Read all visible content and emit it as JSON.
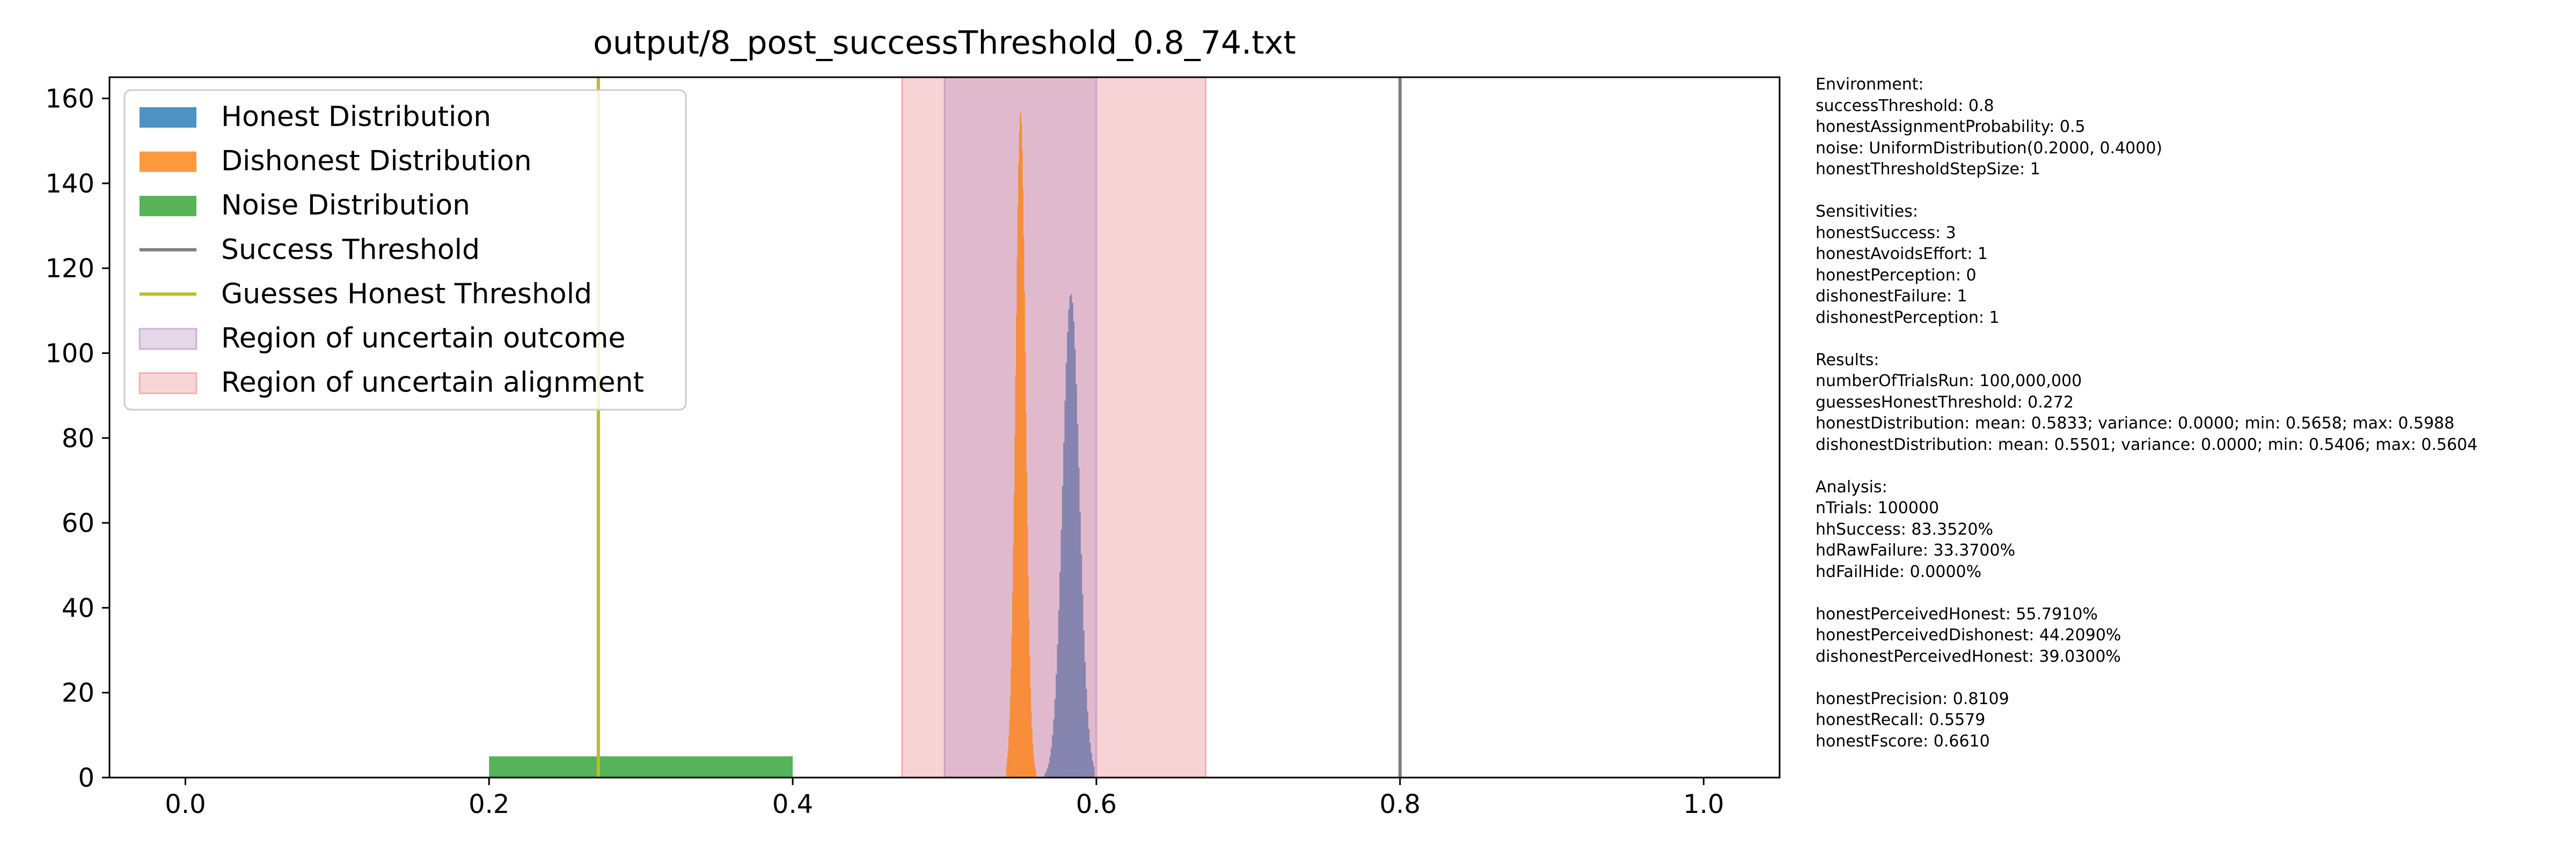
{
  "chart_data": {
    "type": "histogram",
    "title": "output/8_post_successThreshold_0.8_74.txt",
    "xlim": [
      -0.05,
      1.05
    ],
    "ylim": [
      0,
      165
    ],
    "xticks": [
      "0.0",
      "0.2",
      "0.4",
      "0.6",
      "0.8",
      "1.0"
    ],
    "yticks": [
      "0",
      "20",
      "40",
      "60",
      "80",
      "100",
      "120",
      "140",
      "160"
    ],
    "legend_position": "top-left",
    "legend": [
      {
        "label": "Honest Distribution",
        "color": "#1f77b4",
        "kind": "patch"
      },
      {
        "label": "Dishonest Distribution",
        "color": "#ff7f0e",
        "kind": "patch"
      },
      {
        "label": "Noise Distribution",
        "color": "#2ca02c",
        "kind": "patch"
      },
      {
        "label": "Success Threshold",
        "color": "#7f7f7f",
        "kind": "line"
      },
      {
        "label": "Guesses Honest Threshold",
        "color": "#bcbd22",
        "kind": "line"
      },
      {
        "label": "Region of uncertain outcome",
        "color": "#9467bd",
        "kind": "region"
      },
      {
        "label": "Region of uncertain alignment",
        "color": "#e377c2",
        "kind": "region"
      }
    ],
    "success_threshold": 0.8,
    "guesses_honest_threshold": 0.272,
    "region_uncertain_outcome": [
      0.5,
      0.6
    ],
    "region_uncertain_alignment": [
      0.472,
      0.672
    ],
    "noise_distribution": {
      "min": 0.2,
      "max": 0.4,
      "density": 5
    },
    "honest_distribution": {
      "mean": 0.5833,
      "min": 0.5658,
      "max": 0.5988,
      "peak_density": 114
    },
    "dishonest_distribution": {
      "mean": 0.5501,
      "min": 0.5406,
      "max": 0.5604,
      "peak_density": 157
    }
  },
  "side_panel": {
    "lines": [
      "Environment:",
      "successThreshold: 0.8",
      "honestAssignmentProbability: 0.5",
      "noise: UniformDistribution(0.2000, 0.4000)",
      "honestThresholdStepSize: 1",
      "",
      "Sensitivities:",
      "honestSuccess: 3",
      "honestAvoidsEffort: 1",
      "honestPerception: 0",
      "dishonestFailure: 1",
      "dishonestPerception: 1",
      "",
      "Results:",
      "numberOfTrialsRun: 100,000,000",
      "guessesHonestThreshold: 0.272",
      "honestDistribution: mean: 0.5833; variance: 0.0000; min: 0.5658; max: 0.5988",
      "dishonestDistribution: mean: 0.5501; variance: 0.0000; min: 0.5406; max: 0.5604",
      "",
      "Analysis:",
      "nTrials: 100000",
      "hhSuccess: 83.3520%",
      "hdRawFailure: 33.3700%",
      "hdFailHide: 0.0000%",
      "",
      "honestPerceivedHonest: 55.7910%",
      "honestPerceivedDishonest: 44.2090%",
      "dishonestPerceivedHonest: 39.0300%",
      "",
      "honestPrecision: 0.8109",
      "honestRecall: 0.5579",
      "honestFscore: 0.6610"
    ]
  }
}
